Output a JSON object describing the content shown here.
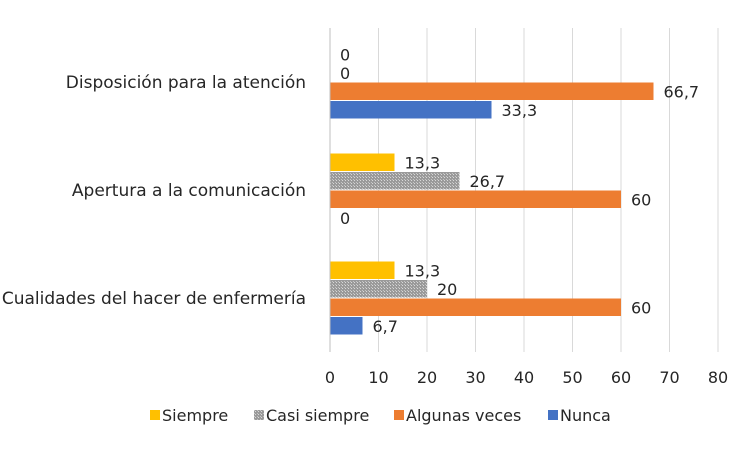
{
  "chart_data": {
    "type": "bar",
    "orientation": "horizontal",
    "categories": [
      "Disposición para la atención",
      "Apertura a la comunicación",
      "Cualidades del hacer de enfermería"
    ],
    "series": [
      {
        "name": "Siempre",
        "color": "#FFC000",
        "values": [
          0,
          13.3,
          13.3
        ],
        "labels": [
          "0",
          "13,3",
          "13,3"
        ]
      },
      {
        "name": "Casi siempre",
        "color": "#A5A5A5",
        "pattern": "dotted",
        "values": [
          0,
          26.7,
          20
        ],
        "labels": [
          "0",
          "26,7",
          "20"
        ]
      },
      {
        "name": "Algunas veces",
        "color": "#ED7D31",
        "values": [
          66.7,
          60,
          60
        ],
        "labels": [
          "66,7",
          "60",
          "60"
        ]
      },
      {
        "name": "Nunca",
        "color": "#4472C4",
        "values": [
          33.3,
          0,
          6.7
        ],
        "labels": [
          "33,3",
          "0",
          "6,7"
        ]
      }
    ],
    "xlim": [
      0,
      80
    ],
    "xticks": [
      "0",
      "10",
      "20",
      "30",
      "40",
      "50",
      "60",
      "70",
      "80"
    ],
    "grid": true,
    "legend_position": "bottom"
  }
}
